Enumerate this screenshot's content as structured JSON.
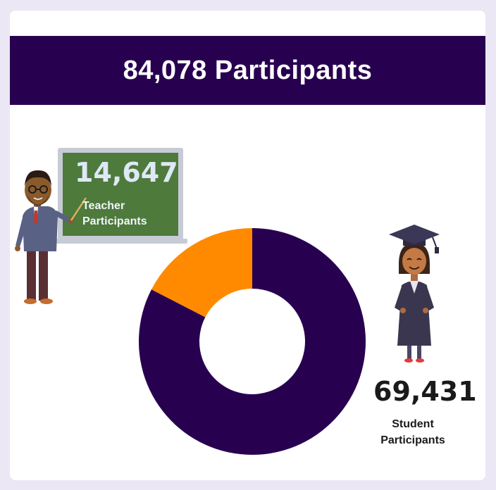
{
  "header": {
    "title": "84,078 Participants"
  },
  "teacher": {
    "value": "14,647",
    "label_line1": "Teacher",
    "label_line2": "Participants"
  },
  "student": {
    "value": "69,431",
    "label_line1": "Student",
    "label_line2": "Participants"
  },
  "colors": {
    "page_bg": "#ebe7f5",
    "banner": "#280050",
    "teacher_slice": "#ff8a00",
    "student_slice": "#280050",
    "chalkboard": "#4e7a3c"
  },
  "chart_data": {
    "type": "pie",
    "title": "84,078 Participants",
    "categories": [
      "Teacher Participants",
      "Student Participants"
    ],
    "values": [
      14647,
      69431
    ],
    "colors": [
      "#ff8a00",
      "#280050"
    ],
    "donut": true
  }
}
